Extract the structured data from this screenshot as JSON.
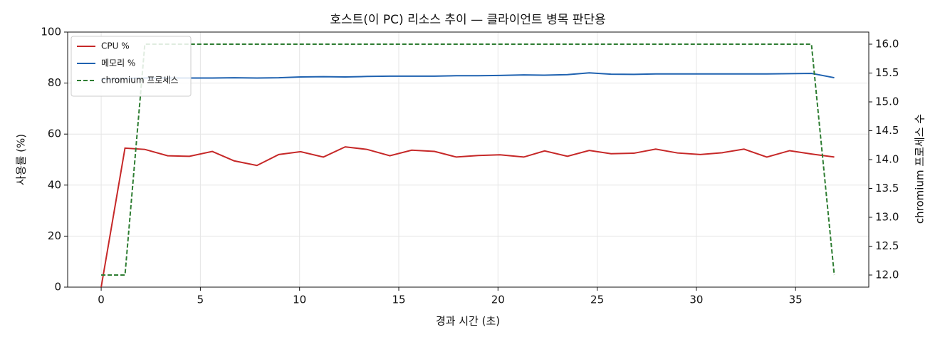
{
  "chart_data": {
    "type": "line",
    "title": "호스트(이 PC) 리소스 추이 — 클라이언트 병목 판단용",
    "x_label": "경과 시간 (초)",
    "y_label": "사용률 (%)",
    "y2_label": "chromium 프로세스 수",
    "x": [
      0,
      1.2,
      2.2,
      3.35,
      4.45,
      5.6,
      6.7,
      7.85,
      8.95,
      10.05,
      11.2,
      12.3,
      13.4,
      14.55,
      15.65,
      16.8,
      17.9,
      19.0,
      20.1,
      21.3,
      22.35,
      23.5,
      24.6,
      25.7,
      26.85,
      27.95,
      29.05,
      30.2,
      31.3,
      32.4,
      33.55,
      34.7,
      35.8,
      36.95
    ],
    "series": [
      {
        "name": "CPU %",
        "color": "#c62828",
        "dash": false,
        "values": [
          0,
          54.5,
          54,
          51.5,
          51.3,
          53.2,
          49.5,
          47.7,
          52,
          53.1,
          51,
          55,
          54,
          51.5,
          53.7,
          53.2,
          51,
          51.6,
          51.9,
          51,
          53.4,
          51.3,
          53.6,
          52.3,
          52.5,
          54.1,
          52.6,
          52,
          52.7,
          54.1,
          51,
          53.5,
          52.2,
          51
        ]
      },
      {
        "name": "메모리 %",
        "color": "#1f62b0",
        "dash": false,
        "values": [
          81.5,
          81.8,
          82,
          82,
          82,
          82,
          82.1,
          82,
          82.1,
          82.4,
          82.5,
          82.4,
          82.6,
          82.7,
          82.7,
          82.7,
          82.9,
          82.9,
          83,
          83.2,
          83.1,
          83.3,
          84,
          83.5,
          83.4,
          83.6,
          83.6,
          83.6,
          83.6,
          83.6,
          83.6,
          83.7,
          83.8,
          82.1
        ]
      },
      {
        "name": "chromium 프로세스",
        "color": "#2e7d32",
        "dash": true,
        "axis": "y2",
        "values": [
          12,
          12,
          16,
          16,
          16,
          16,
          16,
          16,
          16,
          16,
          16,
          16,
          16,
          16,
          16,
          16,
          16,
          16,
          16,
          16,
          16,
          16,
          16,
          16,
          16,
          16,
          16,
          16,
          16,
          16,
          16,
          16,
          16,
          12
        ]
      }
    ],
    "xlim": [
      -1.69,
      38.69
    ],
    "xticks": [
      0,
      5,
      10,
      15,
      20,
      25,
      30,
      35
    ],
    "ylim": [
      0,
      100
    ],
    "yticks": [
      0,
      20,
      40,
      60,
      80,
      100
    ],
    "y2lim": [
      11.79,
      16.21
    ],
    "y2ticks": [
      {
        "value": 12,
        "label": "12.0"
      },
      {
        "value": 12.5,
        "label": "12.5"
      },
      {
        "value": 13,
        "label": "13.0"
      },
      {
        "value": 13.5,
        "label": "13.5"
      },
      {
        "value": 14,
        "label": "14.0"
      },
      {
        "value": 14.5,
        "label": "14.5"
      },
      {
        "value": 15,
        "label": "15.0"
      },
      {
        "value": 15.5,
        "label": "15.5"
      },
      {
        "value": 16,
        "label": "16.0"
      }
    ],
    "grid": true,
    "legend": "upper-left"
  }
}
